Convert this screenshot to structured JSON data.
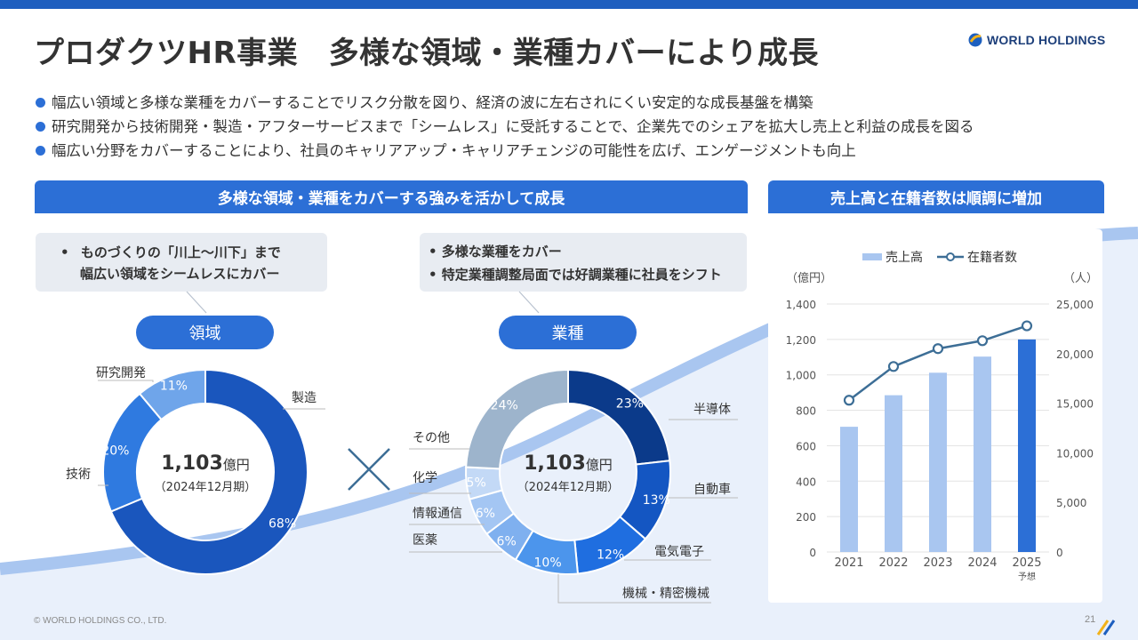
{
  "title": "プロダクツHR事業　多様な領域・業種カバーにより成長",
  "logo": {
    "text": "WORLD HOLDINGS",
    "icon": "world-holdings-logo-icon"
  },
  "bullets": [
    "幅広い領域と多様な業種をカバーすることでリスク分散を図り、経済の波に左右されにくい安定的な成長基盤を構築",
    "研究開発から技術開発・製造・アフターサービスまで「シームレス」に受託することで、企業先でのシェアを拡大し売上と利益の成長を図る",
    "幅広い分野をカバーすることにより、社員のキャリアアップ・キャリアチェンジの可能性を広げ、エンゲージメントも向上"
  ],
  "left_band": "多様な領域・業種をカバーする強みを活かして成長",
  "right_band": "売上高と在籍者数は順調に増加",
  "callout_domain": {
    "bullet": "•",
    "line1": "ものづくりの「川上～川下」まで",
    "line2": "幅広い領域をシームレスにカバー"
  },
  "callout_industry": {
    "line1": "• 多様な業種をカバー",
    "line2": "• 特定業種調整局面では好調業種に社員をシフト"
  },
  "pill_domain": "領域",
  "pill_industry": "業種",
  "cross_symbol": "×",
  "donut_center": {
    "value": "1,103",
    "unit": "億円",
    "sub": "（2024年12月期）"
  },
  "copyright": "© WORLD HOLDINGS CO., LTD.",
  "page_number": "21",
  "colors": {
    "primary": "#2c6fd6",
    "bar": "#a9c6f0",
    "bar_forecast": "#2c6fd6",
    "line": "#3d6e96",
    "text": "#333333"
  },
  "chart_data": [
    {
      "type": "pie",
      "variant": "donut",
      "name": "領域",
      "labels": [
        "製造",
        "技術",
        "研究開発"
      ],
      "values": [
        68,
        20,
        11
      ],
      "value_labels": [
        "68%",
        "20%",
        "11%"
      ],
      "colors": [
        "#1a56bd",
        "#2f7ae0",
        "#6fa5ea"
      ]
    },
    {
      "type": "pie",
      "variant": "donut",
      "name": "業種",
      "labels": [
        "半導体",
        "自動車",
        "電気電子",
        "機械・精密機械",
        "医薬",
        "情報通信",
        "化学",
        "その他"
      ],
      "values": [
        23,
        13,
        12,
        10,
        6,
        6,
        5,
        24
      ],
      "value_labels": [
        "23%",
        "13%",
        "12%",
        "10%",
        "6%",
        "6%",
        "5%",
        "24%"
      ],
      "colors": [
        "#0b3a8a",
        "#1456c2",
        "#1f6ee0",
        "#4c95ec",
        "#7fb0ef",
        "#a4c6f3",
        "#c3d9f6",
        "#9db4cc"
      ]
    },
    {
      "type": "bar",
      "combo": "bar+line",
      "categories": [
        "2021",
        "2022",
        "2023",
        "2024",
        "2025"
      ],
      "category_notes": [
        "",
        "",
        "",
        "",
        "予想"
      ],
      "legend": [
        "売上高",
        "在籍者数"
      ],
      "legend_position": "top",
      "series": [
        {
          "name": "売上高",
          "type": "bar",
          "axis": "left",
          "values": [
            707,
            885,
            1012,
            1103,
            1200
          ]
        },
        {
          "name": "在籍者数",
          "type": "line",
          "axis": "right",
          "values": [
            15300,
            18700,
            20500,
            21300,
            22800
          ]
        }
      ],
      "y_left": {
        "label": "（億円）",
        "ticks": [
          "0",
          "200",
          "400",
          "600",
          "800",
          "1,000",
          "1,200",
          "1,400"
        ],
        "range": [
          0,
          1400
        ]
      },
      "y_right": {
        "label": "（人）",
        "ticks": [
          "0",
          "5,000",
          "10,000",
          "15,000",
          "20,000",
          "25,000"
        ],
        "range": [
          0,
          25000
        ]
      },
      "grid": true
    }
  ]
}
